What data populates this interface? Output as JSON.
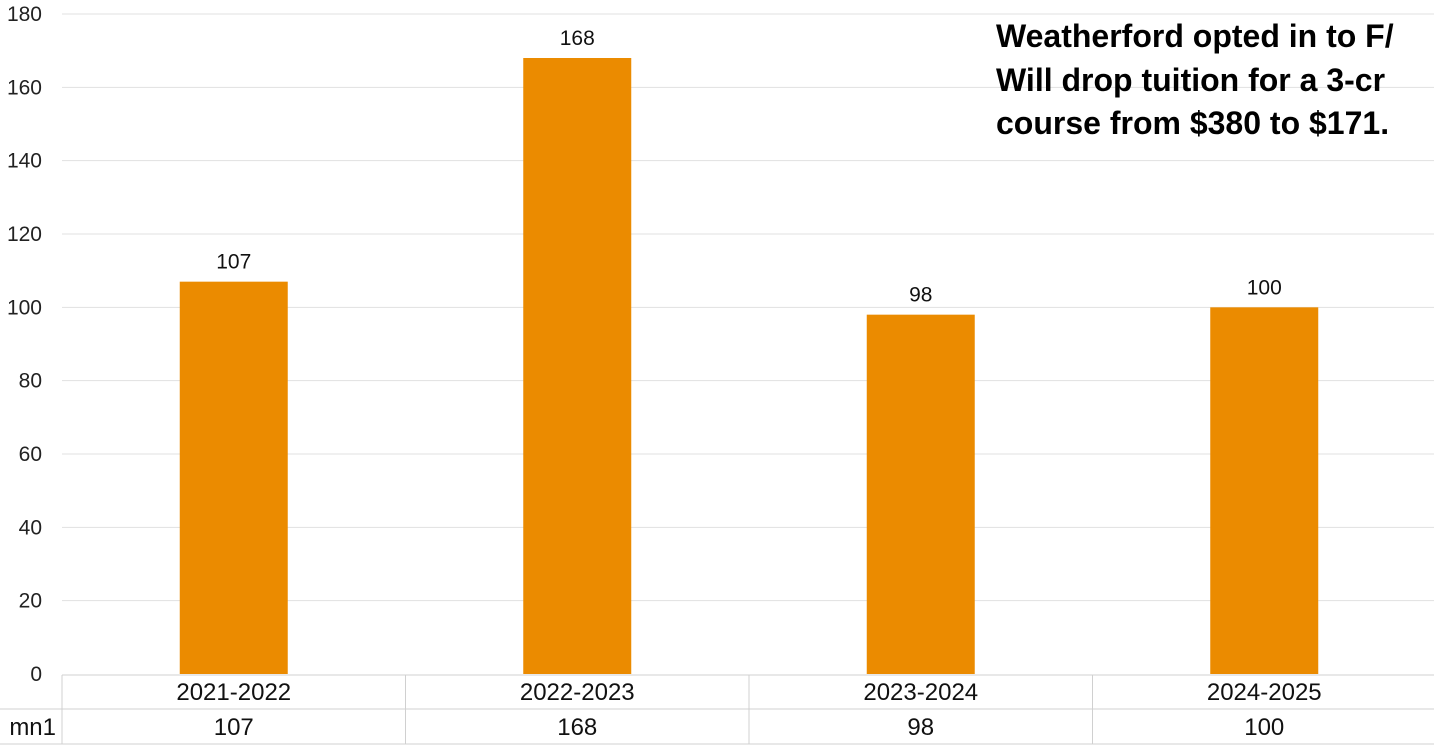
{
  "chart_data": {
    "type": "bar",
    "categories": [
      "2021-2022",
      "2022-2023",
      "2023-2024",
      "2024-2025"
    ],
    "series": [
      {
        "name": "mn1",
        "values": [
          107,
          168,
          98,
          100
        ]
      }
    ],
    "data_labels": [
      "107",
      "168",
      "98",
      "100"
    ],
    "yticks": [
      "0",
      "20",
      "40",
      "60",
      "80",
      "100",
      "120",
      "140",
      "160",
      "180"
    ],
    "ylim": [
      0,
      180
    ],
    "grid": true,
    "bar_color": "#EB8B00",
    "annotation_lines": [
      "Weatherford opted in to F/",
      "Will drop tuition for a 3-cr",
      "course from $380 to $171."
    ],
    "data_table": {
      "header_cells": [
        "2021-2022",
        "2022-2023",
        "2023-2024",
        "2024-2025"
      ],
      "row_label": "mn1",
      "row_cells": [
        "107",
        "168",
        "98",
        "100"
      ]
    }
  }
}
